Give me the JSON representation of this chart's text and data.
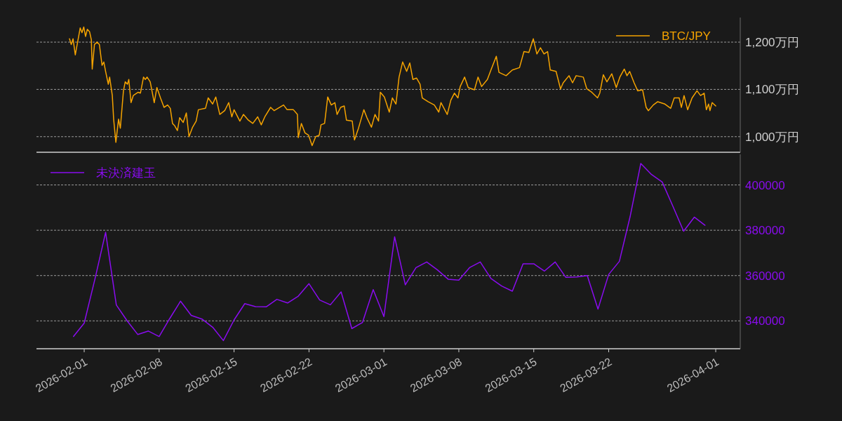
{
  "chart_data": [
    {
      "type": "line",
      "xlim": [
        "2026-01-27T13:00",
        "2026-04-03T07:00"
      ],
      "ylim": [
        967,
        1252
      ],
      "yticks": [
        {
          "value": 1000,
          "label": "1,000万円"
        },
        {
          "value": 1100,
          "label": "1,100万円"
        },
        {
          "value": 1200,
          "label": "1,200万円"
        }
      ],
      "grid": "y",
      "legend": "top right",
      "tick_labels": "y",
      "series": [
        {
          "name": "BTC/JPY",
          "color": "#f5a300",
          "x": [
            "2026-01-30T15:00",
            "2026-01-30T19:00",
            "2026-01-30T23:00",
            "2026-01-31T04:00",
            "2026-01-31T15:00",
            "2026-01-31T19:00",
            "2026-01-31T23:00",
            "2026-02-01T03:00",
            "2026-02-01T07:00",
            "2026-02-01T12:00",
            "2026-02-01T16:00",
            "2026-02-01T18:00",
            "2026-02-01T23:00",
            "2026-02-02T05:00",
            "2026-02-02T10:00",
            "2026-02-02T16:00",
            "2026-02-02T20:00",
            "2026-02-03T00:00",
            "2026-02-03T06:00",
            "2026-02-03T09:00",
            "2026-02-03T15:00",
            "2026-02-03T18:00",
            "2026-02-03T23:00",
            "2026-02-04T05:00",
            "2026-02-04T09:00",
            "2026-02-04T16:00",
            "2026-02-04T20:00",
            "2026-02-05T01:00",
            "2026-02-05T04:00",
            "2026-02-05T09:00",
            "2026-02-05T14:00",
            "2026-02-06T01:00",
            "2026-02-06T06:00",
            "2026-02-06T13:00",
            "2026-02-06T17:00",
            "2026-02-06T21:00",
            "2026-02-07T04:00",
            "2026-02-07T13:00",
            "2026-02-07T19:00",
            "2026-02-08T03:00",
            "2026-02-08T11:00",
            "2026-02-08T19:00",
            "2026-02-09T01:00",
            "2026-02-09T06:00",
            "2026-02-09T11:00",
            "2026-02-09T17:00",
            "2026-02-09T22:00",
            "2026-02-10T06:00",
            "2026-02-10T13:00",
            "2026-02-10T19:00",
            "2026-02-11T03:00",
            "2026-02-11T11:00",
            "2026-02-11T16:00",
            "2026-02-12T08:00",
            "2026-02-12T14:00",
            "2026-02-13T00:00",
            "2026-02-13T07:00",
            "2026-02-13T16:00",
            "2026-02-14T03:00",
            "2026-02-14T12:00",
            "2026-02-14T19:00",
            "2026-02-15T00:00",
            "2026-02-15T13:00",
            "2026-02-15T21:00",
            "2026-02-16T08:00",
            "2026-02-16T18:00",
            "2026-02-17T05:00",
            "2026-02-17T13:00",
            "2026-02-17T21:00",
            "2026-02-18T10:00",
            "2026-02-18T18:00",
            "2026-02-19T15:00",
            "2026-02-19T23:00",
            "2026-02-20T13:00",
            "2026-02-20T22:00",
            "2026-02-21T00:00",
            "2026-02-21T07:00",
            "2026-02-21T15:00",
            "2026-02-21T23:00",
            "2026-02-22T07:00",
            "2026-02-22T15:00",
            "2026-02-22T23:00",
            "2026-02-23T03:00",
            "2026-02-23T11:00",
            "2026-02-23T18:00",
            "2026-02-24T02:00",
            "2026-02-24T10:00",
            "2026-02-24T15:00",
            "2026-02-24T23:00",
            "2026-02-25T07:00",
            "2026-02-25T12:00",
            "2026-02-26T01:00",
            "2026-02-26T06:00",
            "2026-02-26T15:00",
            "2026-02-27T03:00",
            "2026-02-27T10:00",
            "2026-02-27T20:00",
            "2026-02-28T04:00",
            "2026-02-28T12:00",
            "2026-02-28T16:00",
            "2026-03-01T01:00",
            "2026-03-01T12:00",
            "2026-03-01T19:00",
            "2026-03-02T03:00",
            "2026-03-02T10:00",
            "2026-03-02T18:00",
            "2026-03-03T03:00",
            "2026-03-03T10:00",
            "2026-03-03T14:00",
            "2026-03-03T17:00",
            "2026-03-04T01:00",
            "2026-03-04T09:00",
            "2026-03-04T14:00",
            "2026-03-05T03:00",
            "2026-03-05T17:00",
            "2026-03-06T03:00",
            "2026-03-06T08:00",
            "2026-03-06T22:00",
            "2026-03-07T06:00",
            "2026-03-07T14:00",
            "2026-03-07T22:00",
            "2026-03-08T03:00",
            "2026-03-08T13:00",
            "2026-03-08T21:00",
            "2026-03-09T11:00",
            "2026-03-09T19:00",
            "2026-03-10T03:00",
            "2026-03-10T16:00",
            "2026-03-11T00:00",
            "2026-03-11T12:00",
            "2026-03-11T18:00",
            "2026-03-12T10:00",
            "2026-03-13T00:00",
            "2026-03-13T16:00",
            "2026-03-14T02:00",
            "2026-03-14T13:00",
            "2026-03-14T23:00",
            "2026-03-15T07:00",
            "2026-03-15T15:00",
            "2026-03-15T23:00",
            "2026-03-16T07:00",
            "2026-03-16T13:00",
            "2026-03-17T02:00",
            "2026-03-17T12:00",
            "2026-03-17T18:00",
            "2026-03-18T07:00",
            "2026-03-18T15:00",
            "2026-03-18T23:00",
            "2026-03-19T15:00",
            "2026-03-19T23:00",
            "2026-03-20T10:00",
            "2026-03-20T23:00",
            "2026-03-21T04:00",
            "2026-03-21T12:00",
            "2026-03-21T20:00",
            "2026-03-22T07:00",
            "2026-03-22T17:00",
            "2026-03-23T01:00",
            "2026-03-23T11:00",
            "2026-03-23T17:00",
            "2026-03-23T23:00",
            "2026-03-24T09:00",
            "2026-03-24T17:00",
            "2026-03-25T04:00",
            "2026-03-25T12:00",
            "2026-03-25T17:00",
            "2026-03-26T04:00",
            "2026-03-26T14:00",
            "2026-03-27T06:00",
            "2026-03-27T19:00",
            "2026-03-28T03:00",
            "2026-03-28T14:00",
            "2026-03-28T19:00",
            "2026-03-29T01:00",
            "2026-03-29T09:00",
            "2026-03-29T19:00",
            "2026-03-30T06:00",
            "2026-03-30T14:00",
            "2026-03-30T22:00",
            "2026-03-31T03:00",
            "2026-03-31T08:00",
            "2026-03-31T11:00",
            "2026-03-31T16:00",
            "2026-04-01T00:00"
          ],
          "values": [
            1207,
            1195,
            1207,
            1173,
            1230,
            1220,
            1232,
            1212,
            1227,
            1222,
            1205,
            1143,
            1195,
            1200,
            1195,
            1151,
            1158,
            1138,
            1111,
            1126,
            1087,
            1037,
            988,
            1037,
            1018,
            1097,
            1116,
            1111,
            1121,
            1072,
            1087,
            1094,
            1092,
            1126,
            1121,
            1126,
            1116,
            1072,
            1104,
            1082,
            1062,
            1067,
            1060,
            1028,
            1023,
            1013,
            1040,
            1030,
            1050,
            1000,
            1020,
            1033,
            1057,
            1060,
            1082,
            1069,
            1084,
            1047,
            1055,
            1072,
            1042,
            1057,
            1033,
            1047,
            1035,
            1028,
            1042,
            1025,
            1042,
            1062,
            1055,
            1067,
            1057,
            1057,
            1047,
            998,
            1028,
            1008,
            1003,
            981,
            1000,
            1003,
            1025,
            1028,
            1084,
            1067,
            1072,
            1047,
            1062,
            1065,
            1035,
            1033,
            993,
            1018,
            1057,
            1040,
            1020,
            1047,
            1033,
            1094,
            1084,
            1052,
            1082,
            1069,
            1126,
            1158,
            1138,
            1156,
            1136,
            1121,
            1124,
            1111,
            1082,
            1074,
            1067,
            1052,
            1072,
            1047,
            1077,
            1092,
            1082,
            1106,
            1126,
            1104,
            1099,
            1126,
            1106,
            1121,
            1141,
            1170,
            1136,
            1129,
            1141,
            1146,
            1180,
            1178,
            1207,
            1175,
            1188,
            1175,
            1180,
            1141,
            1138,
            1101,
            1114,
            1129,
            1114,
            1129,
            1126,
            1101,
            1094,
            1082,
            1092,
            1131,
            1116,
            1133,
            1104,
            1126,
            1143,
            1129,
            1138,
            1114,
            1097,
            1099,
            1062,
            1055,
            1067,
            1074,
            1069,
            1060,
            1082,
            1082,
            1062,
            1087,
            1057,
            1082,
            1097,
            1087,
            1092,
            1057,
            1069,
            1055,
            1072,
            1065
          ]
        }
      ]
    },
    {
      "type": "line",
      "xlim": [
        "2026-01-27T13:00",
        "2026-04-03T07:00"
      ],
      "ylim": [
        327700,
        413500
      ],
      "yticks": [
        340000,
        360000,
        380000,
        400000
      ],
      "xticks": [
        {
          "value": "2026-02-01",
          "label": "2026-02-01"
        },
        {
          "value": "2026-02-08",
          "label": "2026-02-08"
        },
        {
          "value": "2026-02-15",
          "label": "2026-02-15"
        },
        {
          "value": "2026-02-22",
          "label": "2026-02-22"
        },
        {
          "value": "2026-03-01",
          "label": "2026-03-01"
        },
        {
          "value": "2026-03-08",
          "label": "2026-03-08"
        },
        {
          "value": "2026-03-15",
          "label": "2026-03-15"
        },
        {
          "value": "2026-03-22",
          "label": "2026-03-22"
        },
        {
          "value": "2026-04-01",
          "label": "2026-04-01"
        }
      ],
      "grid": "y",
      "legend": "top left",
      "series": [
        {
          "name": "未決済建玉",
          "color": "#8a0cf0",
          "x": [
            "2026-01-31",
            "2026-02-01",
            "2026-02-02",
            "2026-02-03",
            "2026-02-04",
            "2026-02-05",
            "2026-02-06",
            "2026-02-07",
            "2026-02-08",
            "2026-02-09",
            "2026-02-10",
            "2026-02-11",
            "2026-02-12",
            "2026-02-13",
            "2026-02-14",
            "2026-02-15",
            "2026-02-16",
            "2026-02-17",
            "2026-02-18",
            "2026-02-19",
            "2026-02-20",
            "2026-02-21",
            "2026-02-22",
            "2026-02-23",
            "2026-02-24",
            "2026-02-25",
            "2026-02-26",
            "2026-02-27",
            "2026-02-28",
            "2026-03-01",
            "2026-03-02",
            "2026-03-03",
            "2026-03-04",
            "2026-03-05",
            "2026-03-06",
            "2026-03-07",
            "2026-03-08",
            "2026-03-09",
            "2026-03-10",
            "2026-03-11",
            "2026-03-12",
            "2026-03-13",
            "2026-03-14",
            "2026-03-15",
            "2026-03-16",
            "2026-03-17",
            "2026-03-18",
            "2026-03-19",
            "2026-03-20",
            "2026-03-21",
            "2026-03-22",
            "2026-03-23",
            "2026-03-24",
            "2026-03-25",
            "2026-03-26",
            "2026-03-27",
            "2026-03-28",
            "2026-03-29",
            "2026-03-30",
            "2026-03-31"
          ],
          "values": [
            333100,
            339000,
            358400,
            379100,
            347000,
            340100,
            334000,
            335500,
            333100,
            341100,
            348700,
            342400,
            340800,
            337200,
            331300,
            340400,
            347600,
            346300,
            346200,
            349500,
            347900,
            350900,
            356400,
            349200,
            347100,
            352800,
            336600,
            339300,
            353800,
            341900,
            377100,
            355900,
            363500,
            366000,
            362500,
            358400,
            358000,
            363500,
            366000,
            358700,
            355400,
            353100,
            365200,
            365200,
            362000,
            366000,
            359200,
            359400,
            360000,
            345200,
            360500,
            366300,
            386000,
            409500,
            404600,
            401300,
            390600,
            379600,
            385800,
            382200
          ]
        }
      ]
    }
  ]
}
